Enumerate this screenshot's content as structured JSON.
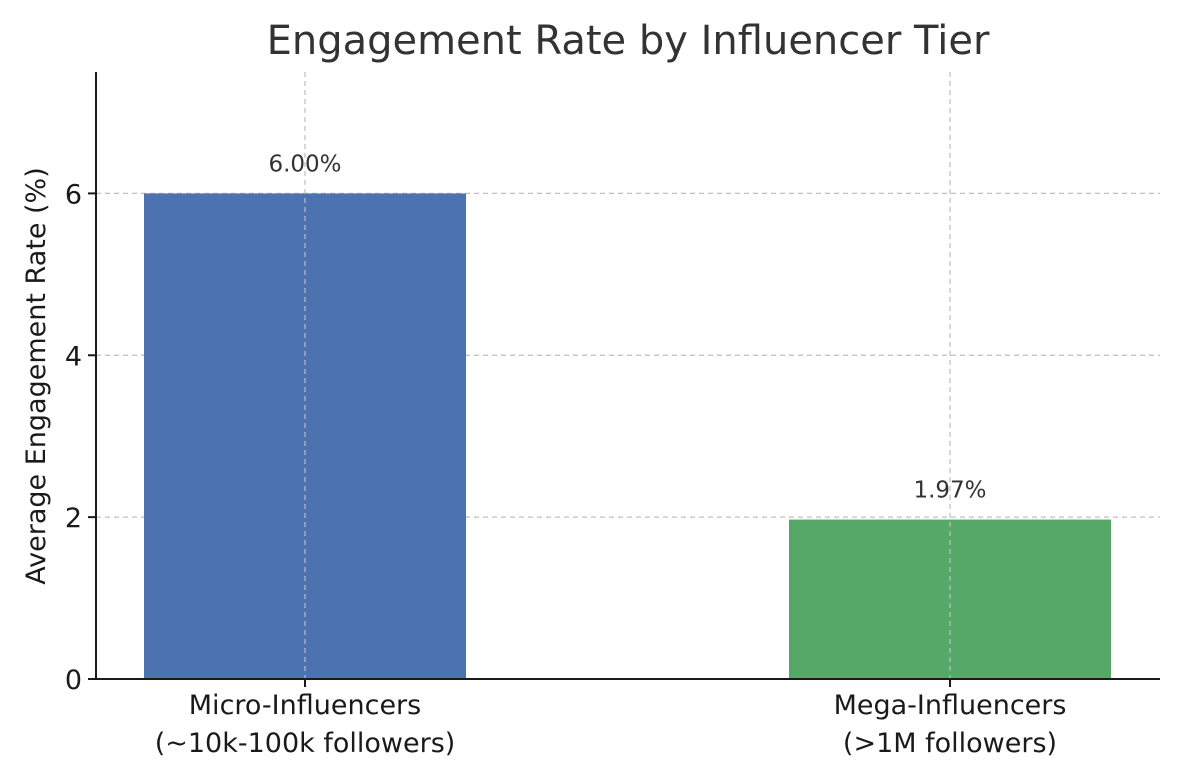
{
  "chart_data": {
    "type": "bar",
    "title": "Engagement Rate by Influencer Tier",
    "xlabel": "",
    "ylabel": "Average Engagement Rate (%)",
    "categories": [
      [
        "Micro-Influencers",
        "(~10k-100k followers)"
      ],
      [
        "Mega-Influencers",
        "(>1M followers)"
      ]
    ],
    "values": [
      6.0,
      1.97
    ],
    "value_labels": [
      "6.00%",
      "1.97%"
    ],
    "colors": [
      "#4c72b0",
      "#55a868"
    ],
    "ylim": [
      0,
      7.5
    ],
    "yticks": [
      0,
      2,
      4,
      6
    ],
    "grid": true,
    "legend": "none"
  }
}
